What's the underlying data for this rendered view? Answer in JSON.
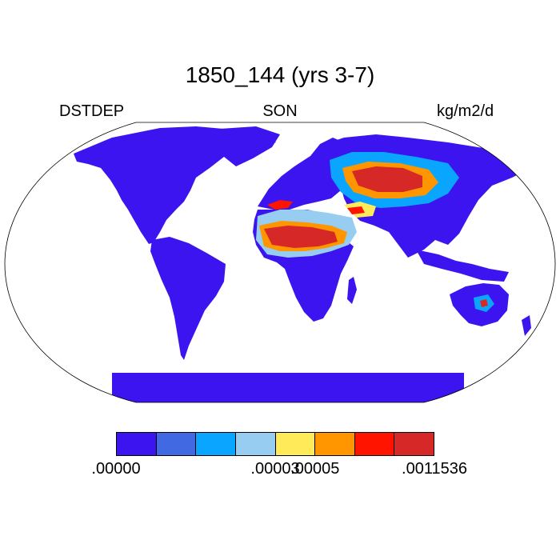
{
  "title": "1850_144 (yrs 3-7)",
  "left_label": "DSTDEP",
  "center_label": "SON",
  "right_label": "kg/m2/d",
  "colors": {
    "land_base": "#3c14f0",
    "level_2": "#4169e1",
    "level_3": "#0aa5ff",
    "level_4": "#96cdf0",
    "level_5": "#ffeb5a",
    "level_6": "#ff9600",
    "level_7": "#ff1400",
    "level_8": "#d72828"
  },
  "colorbar": {
    "boxes": [
      "#3c14f0",
      "#4169e1",
      "#0aa5ff",
      "#96cdf0",
      "#ffeb5a",
      "#ff9600",
      "#ff1400",
      "#d72828"
    ],
    "tick_labels": [
      {
        "text": ".00000",
        "after_box": 0
      },
      {
        "text": ".00003",
        "after_box": 3
      },
      {
        "text": ".00005",
        "after_box": 4
      },
      {
        "text": ".0011536",
        "after_box": 7
      }
    ]
  }
}
